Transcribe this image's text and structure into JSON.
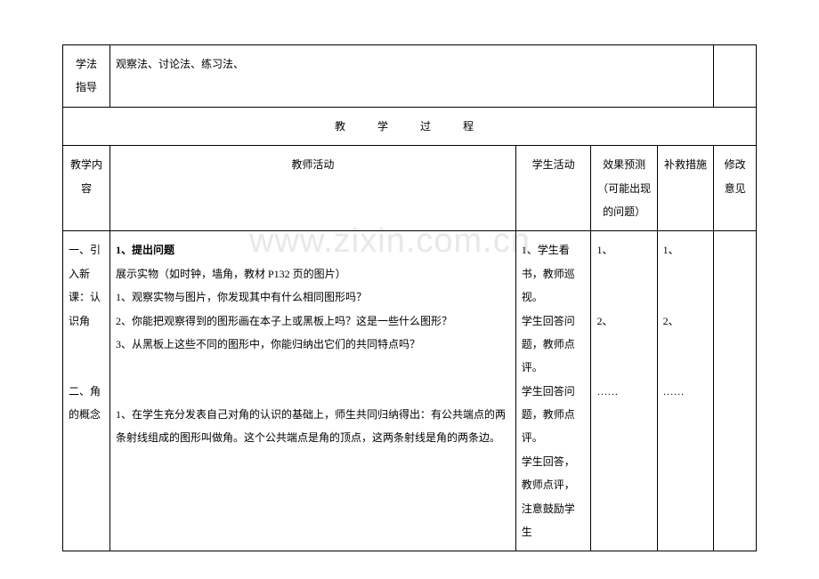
{
  "row1": {
    "label": "学法\n指导",
    "content": "观察法、讨论法、练习法、"
  },
  "processHeader": "教　学　过　程",
  "headers": {
    "c1": "教学内容",
    "c2": "教师活动",
    "c3": "学生活动",
    "c4": "效果预测（可能出现的问题）",
    "c5": "补救措施",
    "c6": "修改意见"
  },
  "body": {
    "c1": "一、引入新课：认识角\n\n二、角的概念",
    "c2_heading": "1、提出问题",
    "c2_lines": [
      "展示实物（如时钟，墙角，教材 P132 页的图片）",
      "1、观察实物与图片，你发现其中有什么相同图形吗？",
      "2、你能把观察得到的图形画在本子上或黑板上吗？这是一些什么图形？",
      "3、从黑板上这些不同的图形中，你能归纳出它们的共同特点吗？",
      "",
      "",
      "1、在学生充分发表自己对角的认识的基础上，师生共同归纳得出：有公共端点的两条射线组成的图形叫做角。这个公共端点是角的顶点，这两条射线是角的两条边。"
    ],
    "c3": "1、学生看书，教师巡视。\n学生回答问题，教师点评。\n学生回答问题，教师点评。\n学生回答，教师点评，注意鼓励学生",
    "c4": "1、\n\n2、\n\n……",
    "c5": "1、\n\n2、\n\n……",
    "c6": ""
  },
  "watermark": "www.zixin.com.cn",
  "colors": {
    "text": "#000000",
    "border": "#000000",
    "bg": "#ffffff",
    "watermark": "rgba(190,190,190,0.35)"
  },
  "fontsize": {
    "body": 12,
    "watermark": 38
  }
}
